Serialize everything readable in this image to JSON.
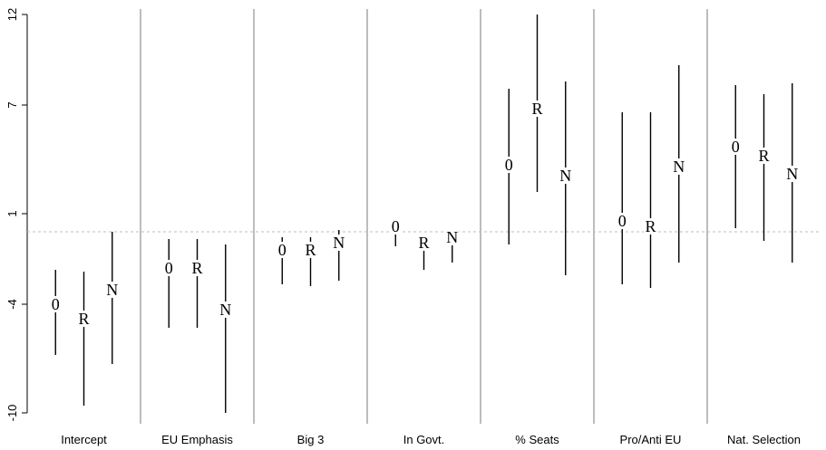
{
  "chart_data": {
    "type": "scatter",
    "title": "",
    "xlabel": "",
    "ylabel": "",
    "ylim": [
      -10.3,
      12.3
    ],
    "yticks": [
      12,
      7,
      1,
      -4,
      -10
    ],
    "reference_line": 0,
    "categories": [
      "Intercept",
      "EU Emphasis",
      "Big 3",
      "In Govt.",
      "% Seats",
      "Pro/Anti EU",
      "Nat. Selection"
    ],
    "marker_labels": [
      "0",
      "R",
      "N"
    ],
    "series": [
      {
        "marker": "0",
        "values": [
          -4.0,
          -2.0,
          -1.0,
          0.3,
          3.7,
          0.6,
          4.7
        ],
        "low": [
          -6.8,
          -5.3,
          -2.9,
          -0.8,
          -0.7,
          -2.9,
          0.2
        ],
        "high": [
          -2.1,
          -0.4,
          -0.3,
          0.6,
          7.9,
          6.6,
          8.1
        ]
      },
      {
        "marker": "R",
        "values": [
          -4.8,
          -2.0,
          -1.0,
          -0.6,
          6.8,
          0.3,
          4.2
        ],
        "low": [
          -9.6,
          -5.3,
          -3.0,
          -2.1,
          2.2,
          -3.1,
          -0.5
        ],
        "high": [
          -2.2,
          -0.4,
          -0.3,
          -0.4,
          12.0,
          6.6,
          7.6
        ]
      },
      {
        "marker": "N",
        "values": [
          -3.2,
          -4.3,
          -0.6,
          -0.3,
          3.1,
          3.6,
          3.2
        ],
        "low": [
          -7.3,
          -10.0,
          -2.7,
          -1.7,
          -2.4,
          -1.7,
          -1.7
        ],
        "high": [
          0.0,
          -0.7,
          0.1,
          0.1,
          8.3,
          9.2,
          8.2
        ]
      }
    ],
    "grid": false,
    "legend": "none"
  }
}
